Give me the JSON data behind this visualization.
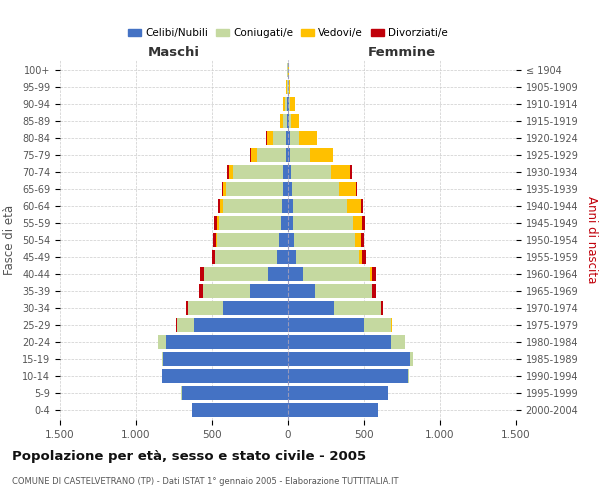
{
  "age_groups": [
    "0-4",
    "5-9",
    "10-14",
    "15-19",
    "20-24",
    "25-29",
    "30-34",
    "35-39",
    "40-44",
    "45-49",
    "50-54",
    "55-59",
    "60-64",
    "65-69",
    "70-74",
    "75-79",
    "80-84",
    "85-89",
    "90-94",
    "95-99",
    "100+"
  ],
  "birth_years": [
    "2000-2004",
    "1995-1999",
    "1990-1994",
    "1985-1989",
    "1980-1984",
    "1975-1979",
    "1970-1974",
    "1965-1969",
    "1960-1964",
    "1955-1959",
    "1950-1954",
    "1945-1949",
    "1940-1944",
    "1935-1939",
    "1930-1934",
    "1925-1929",
    "1920-1924",
    "1915-1919",
    "1910-1914",
    "1905-1909",
    "≤ 1904"
  ],
  "males": {
    "celibi": [
      630,
      700,
      830,
      820,
      800,
      620,
      430,
      250,
      130,
      70,
      60,
      45,
      40,
      35,
      30,
      15,
      10,
      8,
      5,
      2,
      2
    ],
    "coniugati": [
      0,
      1,
      2,
      10,
      55,
      110,
      230,
      310,
      420,
      410,
      410,
      410,
      390,
      370,
      330,
      190,
      90,
      25,
      15,
      5,
      2
    ],
    "vedovi": [
      0,
      0,
      0,
      0,
      0,
      0,
      1,
      1,
      2,
      3,
      5,
      10,
      15,
      20,
      30,
      40,
      40,
      20,
      10,
      5,
      1
    ],
    "divorziati": [
      0,
      0,
      0,
      0,
      2,
      5,
      10,
      25,
      25,
      20,
      18,
      20,
      15,
      8,
      10,
      3,
      3,
      2,
      1,
      0,
      0
    ]
  },
  "females": {
    "nubili": [
      590,
      660,
      790,
      800,
      680,
      500,
      300,
      180,
      100,
      50,
      40,
      35,
      30,
      25,
      20,
      15,
      10,
      8,
      5,
      2,
      2
    ],
    "coniugate": [
      0,
      1,
      3,
      20,
      90,
      180,
      310,
      370,
      440,
      420,
      400,
      390,
      360,
      310,
      260,
      130,
      60,
      15,
      10,
      3,
      1
    ],
    "vedove": [
      0,
      0,
      0,
      0,
      1,
      2,
      3,
      5,
      10,
      20,
      40,
      60,
      90,
      110,
      130,
      150,
      120,
      50,
      30,
      10,
      3
    ],
    "divorziate": [
      0,
      0,
      0,
      0,
      2,
      5,
      10,
      25,
      30,
      25,
      20,
      20,
      15,
      8,
      10,
      3,
      3,
      2,
      1,
      0,
      0
    ]
  },
  "colors": {
    "celibi": "#4472c4",
    "coniugati": "#c5d9a0",
    "vedovi": "#ffc000",
    "divorziati": "#c0000a"
  },
  "xlim": 1500,
  "title": "Popolazione per età, sesso e stato civile - 2005",
  "subtitle": "COMUNE DI CASTELVETRANO (TP) - Dati ISTAT 1° gennaio 2005 - Elaborazione TUTTITALIA.IT",
  "ylabel_left": "Fasce di età",
  "ylabel_right": "Anni di nascita",
  "label_maschi": "Maschi",
  "label_femmine": "Femmine",
  "legend_labels": [
    "Celibi/Nubili",
    "Coniugati/e",
    "Vedovi/e",
    "Divorziati/e"
  ],
  "xticks": [
    -1500,
    -1000,
    -500,
    0,
    500,
    1000,
    1500
  ],
  "xtick_labels": [
    "1.500",
    "1.000",
    "500",
    "0",
    "500",
    "1.000",
    "1.500"
  ],
  "bg_color": "#ffffff",
  "grid_color": "#cccccc",
  "text_color": "#555555",
  "spine_color": "#cccccc"
}
